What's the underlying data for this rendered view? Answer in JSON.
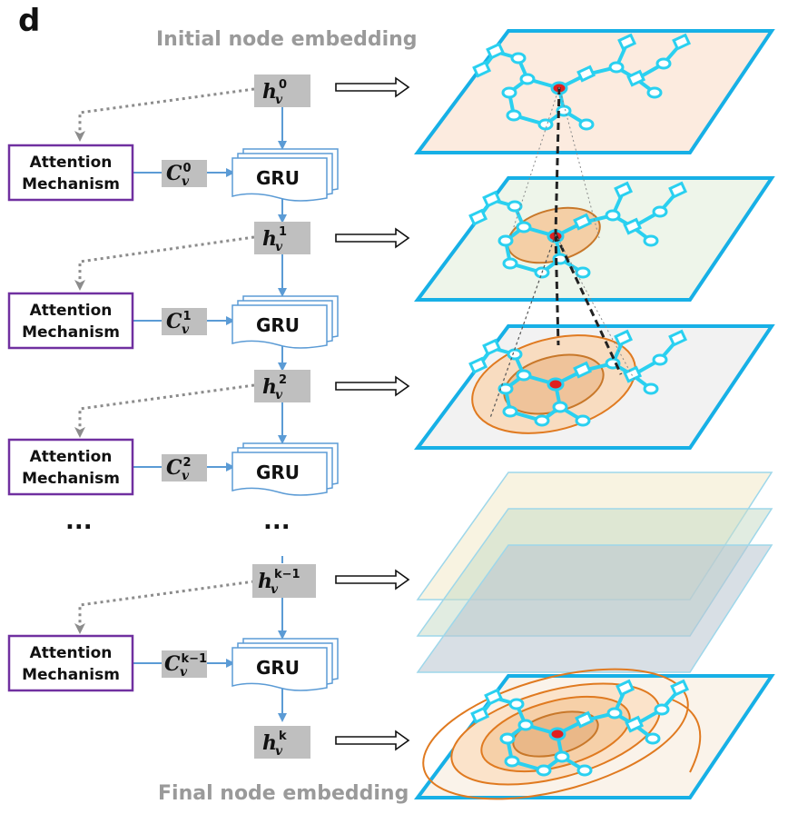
{
  "panel_letter": "d",
  "captions": {
    "top": "Initial node embedding",
    "bottom": "Final node embedding"
  },
  "ellipsis": "...",
  "attention_label": [
    "Attention",
    "Mechanism"
  ],
  "gru_label": "GRU",
  "hidden_states": [
    {
      "sym": "h",
      "sub": "v",
      "sup": "0"
    },
    {
      "sym": "h",
      "sub": "v",
      "sup": "1"
    },
    {
      "sym": "h",
      "sub": "v",
      "sup": "2"
    },
    {
      "sym": "h",
      "sub": "v",
      "sup": "k−1"
    },
    {
      "sym": "h",
      "sub": "v",
      "sup": "k"
    }
  ],
  "context_vectors": [
    {
      "sym": "C",
      "sub": "v",
      "sup": "0"
    },
    {
      "sym": "C",
      "sub": "v",
      "sup": "1"
    },
    {
      "sym": "C",
      "sub": "v",
      "sup": "2"
    },
    {
      "sym": "C",
      "sub": "v",
      "sup": "k−1"
    }
  ],
  "colors": {
    "attention_border": "#7030a0",
    "flow_arrow": "#5b9bd5",
    "label_box": "#bfbfbf",
    "dotted_arrow": "#8c8c8c",
    "plane_border": "#17b0e6",
    "graph": "#2ad0f0",
    "center_node": "#e02020",
    "orange": "#e07a20"
  }
}
